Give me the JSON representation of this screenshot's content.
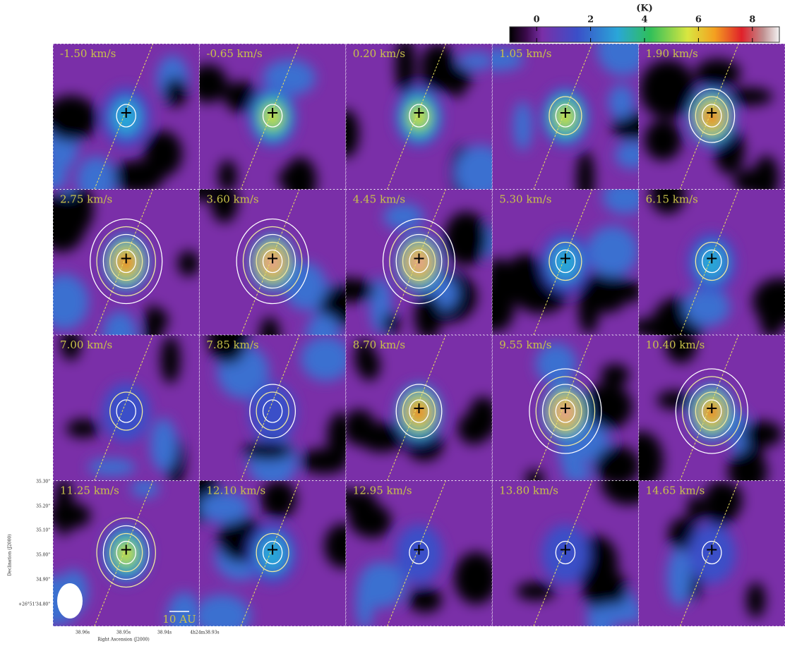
{
  "colorbar": {
    "label": "(K)",
    "lim": [
      -1,
      9
    ],
    "ticks": [
      0,
      2,
      4,
      6,
      8
    ]
  },
  "panels": [
    {
      "label": "-1.50 km/s"
    },
    {
      "label": "-0.65 km/s"
    },
    {
      "label": "0.20 km/s"
    },
    {
      "label": "1.05 km/s"
    },
    {
      "label": "1.90 km/s"
    },
    {
      "label": "2.75 km/s"
    },
    {
      "label": "3.60 km/s"
    },
    {
      "label": "4.45 km/s"
    },
    {
      "label": "5.30 km/s"
    },
    {
      "label": "6.15 km/s"
    },
    {
      "label": "7.00 km/s"
    },
    {
      "label": "7.85 km/s"
    },
    {
      "label": "8.70 km/s"
    },
    {
      "label": "9.55 km/s"
    },
    {
      "label": "10.40 km/s"
    },
    {
      "label": "11.25 km/s"
    },
    {
      "label": "12.10 km/s"
    },
    {
      "label": "12.95 km/s"
    },
    {
      "label": "13.80 km/s"
    },
    {
      "label": "14.65 km/s"
    }
  ],
  "axes": {
    "y_label": "Declination (J2000)",
    "x_label": "Right Ascension (J2000)",
    "y_ticks": [
      "35.30\"",
      "35.20\"",
      "35.10\"",
      "35.00\"",
      "34.90\"",
      "+26°51'34.80\""
    ],
    "x_ticks": [
      "38.96s",
      "38.95s",
      "38.94s",
      "4h24m38.93s"
    ]
  },
  "scale_bar": "10 AU"
}
